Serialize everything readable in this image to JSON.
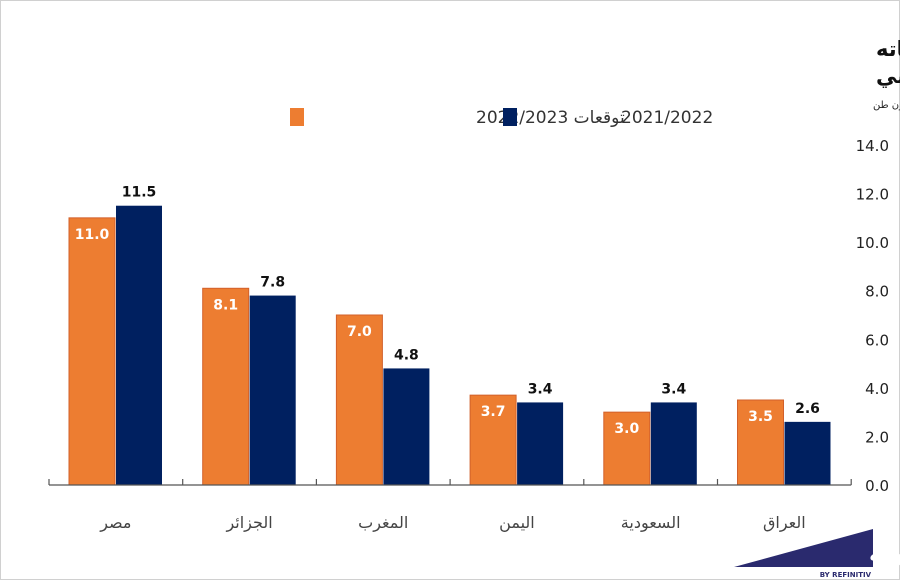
{
  "chart_data": {
    "type": "bar",
    "title": "تقديرات وزارة الزراعة الأمريكية لواردات مستوردي القمح  ومنتجاته للموسم الحالي والماضي",
    "ylabel": "مليون طن",
    "categories": [
      "مصر",
      "الجزائر",
      "المغرب",
      "اليمن",
      "السعودية",
      "العراق"
    ],
    "series": [
      {
        "name": "توقعات 2022/2023",
        "color": "#ED7D31",
        "values": [
          11.0,
          8.1,
          7.0,
          3.7,
          3.0,
          3.5
        ]
      },
      {
        "name": "2021/2022",
        "color": "#002060",
        "values": [
          11.5,
          7.8,
          4.8,
          3.4,
          3.4,
          2.6
        ]
      }
    ],
    "ylim": [
      0,
      14
    ],
    "yticks": [
      "0.0",
      "2.0",
      "4.0",
      "6.0",
      "8.0",
      "10.0",
      "12.0",
      "14.0"
    ],
    "yaxis_position": "right",
    "grid": false,
    "legend_position": "top"
  },
  "logo": {
    "text": "زاوية",
    "sub": "BY REFINITIV",
    "color": "#2a2a6e"
  }
}
